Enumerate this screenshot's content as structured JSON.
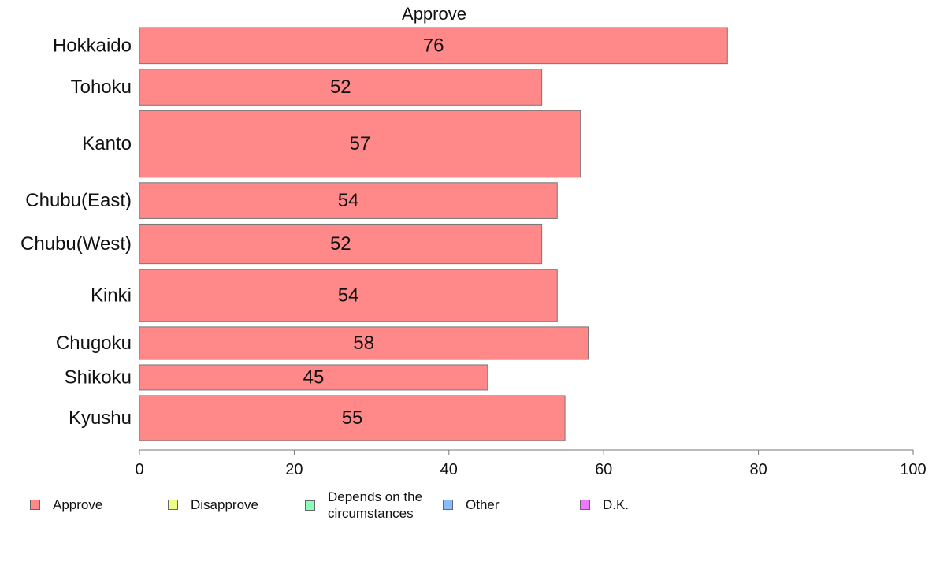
{
  "chart_data": {
    "type": "bar",
    "orientation": "horizontal",
    "title": "Approve",
    "categories": [
      "Hokkaido",
      "Tohoku",
      "Kanto",
      "Chubu(East)",
      "Chubu(West)",
      "Kinki",
      "Chugoku",
      "Shikoku",
      "Kyushu"
    ],
    "values": [
      76,
      52,
      57,
      54,
      52,
      54,
      58,
      45,
      55
    ],
    "relative_widths": [
      1.0,
      1.0,
      1.85,
      1.0,
      1.1,
      1.45,
      0.9,
      0.7,
      1.25
    ],
    "xlim": [
      0,
      100
    ],
    "xticks": [
      "0",
      "20",
      "40",
      "60",
      "80",
      "100"
    ],
    "grid": false,
    "legend_placement": "bottom",
    "colors": {
      "Approve": "#ff8888",
      "bar_border": "#777777"
    }
  },
  "legend": {
    "items": [
      {
        "label": "Approve",
        "color": "#ff8888"
      },
      {
        "label": "Disapprove",
        "color": "#eeff88"
      },
      {
        "label": "Depends on the circumstances",
        "color": "#88ffbb"
      },
      {
        "label": "Other",
        "color": "#88bbff"
      },
      {
        "label": "D.K.",
        "color": "#ee77ff"
      }
    ]
  }
}
